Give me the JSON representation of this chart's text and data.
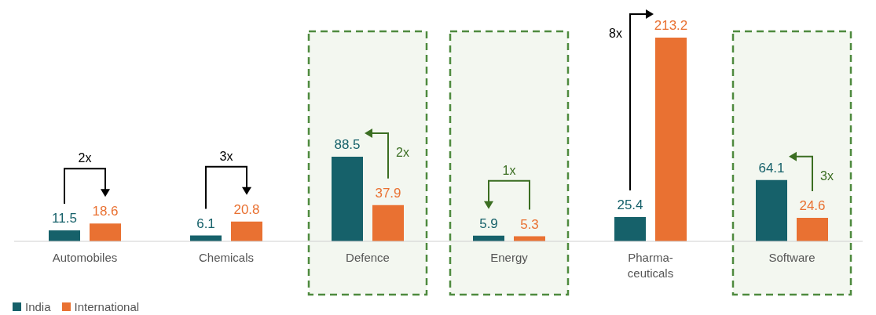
{
  "chart_data": {
    "type": "bar",
    "categories": [
      "Automobiles",
      "Chemicals",
      "Defence",
      "Energy",
      "Pharma-\nceuticals",
      "Software"
    ],
    "series": [
      {
        "name": "India",
        "color": "#16616a",
        "values": [
          11.5,
          6.1,
          88.5,
          5.9,
          25.4,
          64.1
        ]
      },
      {
        "name": "International",
        "color": "#e97132",
        "values": [
          18.6,
          20.8,
          37.9,
          5.3,
          213.2,
          24.6
        ]
      }
    ],
    "data_labels": true,
    "legend": "bottom left",
    "bands": [
      {
        "axis": "x",
        "from": "Defence",
        "to": "Defence",
        "color": "#f3f7f0"
      },
      {
        "axis": "x",
        "from": "Energy",
        "to": "Energy",
        "color": "#f3f7f0"
      },
      {
        "axis": "x",
        "from": "Software",
        "to": "Software",
        "color": "#f3f7f0"
      }
    ],
    "annotations": [
      "2x",
      "3x",
      "2x",
      "1x",
      "8x",
      "3x"
    ]
  }
}
